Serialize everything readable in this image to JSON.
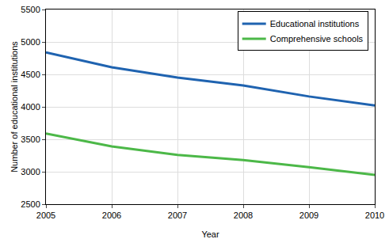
{
  "chart_data": {
    "type": "line",
    "x_label": "Year",
    "y_label": "Number of educational institutions",
    "x": [
      2005,
      2006,
      2007,
      2008,
      2009,
      2010
    ],
    "series": [
      {
        "name": "Educational institutions",
        "color": "#1f63b0",
        "values": [
          4840,
          4610,
          4450,
          4330,
          4160,
          4020
        ]
      },
      {
        "name": "Comprehensive schools",
        "color": "#4cb848",
        "values": [
          3590,
          3390,
          3260,
          3180,
          3070,
          2950
        ]
      }
    ],
    "xlim": [
      2005,
      2010
    ],
    "xticks": [
      2005,
      2006,
      2007,
      2008,
      2009,
      2010
    ],
    "ylim": [
      2500,
      5500
    ],
    "yticks": [
      2500,
      3000,
      3500,
      4000,
      4500,
      5000,
      5500
    ],
    "grid": true,
    "legend": "top-right"
  }
}
